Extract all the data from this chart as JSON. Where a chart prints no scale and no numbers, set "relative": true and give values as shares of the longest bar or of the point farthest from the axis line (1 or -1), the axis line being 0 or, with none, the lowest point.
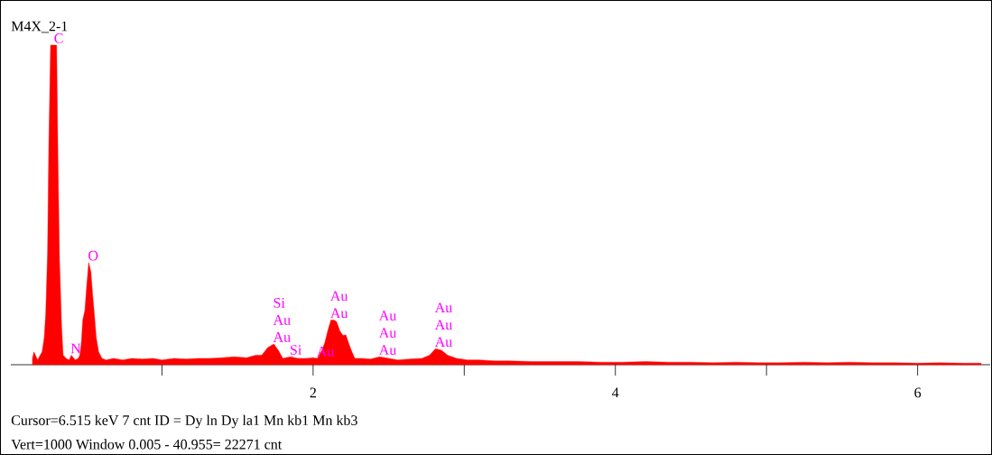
{
  "chart_data": {
    "type": "area",
    "relative": true,
    "title": "M4X_2-1",
    "xlim": [
      0,
      6.48
    ],
    "xticks": [
      {
        "value": 1,
        "label": null
      },
      {
        "value": 2,
        "label": "2"
      },
      {
        "value": 3,
        "label": null
      },
      {
        "value": 4,
        "label": "4"
      },
      {
        "value": 5,
        "label": null
      },
      {
        "value": 6,
        "label": "6"
      }
    ],
    "x": [
      0.143,
      0.153,
      0.177,
      0.207,
      0.221,
      0.231,
      0.243,
      0.251,
      0.263,
      0.277,
      0.29,
      0.303,
      0.312,
      0.322,
      0.336,
      0.346,
      0.366,
      0.386,
      0.4,
      0.426,
      0.446,
      0.456,
      0.466,
      0.476,
      0.49,
      0.501,
      0.515,
      0.53,
      0.541,
      0.555,
      0.565,
      0.581,
      0.603,
      0.63,
      0.68,
      0.74,
      0.8,
      0.87,
      0.94,
      1.0,
      1.08,
      1.16,
      1.24,
      1.32,
      1.4,
      1.48,
      1.56,
      1.62,
      1.66,
      1.7,
      1.74,
      1.77,
      1.8,
      1.85,
      1.9,
      1.96,
      2.0,
      2.028,
      2.058,
      2.078,
      2.097,
      2.118,
      2.137,
      2.155,
      2.177,
      2.197,
      2.217,
      2.237,
      2.257,
      2.276,
      2.32,
      2.38,
      2.44,
      2.5,
      2.56,
      2.64,
      2.72,
      2.77,
      2.81,
      2.85,
      2.89,
      2.95,
      3.02,
      3.1,
      3.2,
      3.3,
      3.45,
      3.6,
      3.75,
      3.9,
      4.05,
      4.2,
      4.35,
      4.5,
      4.65,
      4.8,
      4.95,
      5.1,
      5.25,
      5.4,
      5.55,
      5.7,
      5.85,
      6.0,
      6.15,
      6.3,
      6.42
    ],
    "values": [
      0.02,
      0.04,
      0.015,
      0.04,
      0.085,
      0.16,
      0.35,
      0.68,
      1,
      1,
      1,
      1,
      0.64,
      0.33,
      0.12,
      0.03,
      0.02,
      0.015,
      0.03,
      0.015,
      0.02,
      0.03,
      0.065,
      0.14,
      0.17,
      0.24,
      0.32,
      0.29,
      0.22,
      0.145,
      0.085,
      0.04,
      0.02,
      0.015,
      0.02,
      0.015,
      0.02,
      0.018,
      0.02,
      0.015,
      0.02,
      0.018,
      0.02,
      0.02,
      0.022,
      0.025,
      0.022,
      0.03,
      0.03,
      0.054,
      0.065,
      0.045,
      0.02,
      0.025,
      0.02,
      0.02,
      0.022,
      0.02,
      0.045,
      0.07,
      0.106,
      0.14,
      0.14,
      0.135,
      0.106,
      0.092,
      0.093,
      0.065,
      0.04,
      0.02,
      0.02,
      0.018,
      0.025,
      0.02,
      0.015,
      0.018,
      0.02,
      0.03,
      0.05,
      0.045,
      0.03,
      0.02,
      0.015,
      0.015,
      0.012,
      0.012,
      0.01,
      0.01,
      0.01,
      0.008,
      0.008,
      0.01,
      0.008,
      0.008,
      0.006,
      0.008,
      0.006,
      0.006,
      0.008,
      0.006,
      0.008,
      0.006,
      0.006,
      0.005,
      0.006,
      0.005,
      0.005
    ],
    "color": "#ff0000",
    "annotations": [
      {
        "text": "C",
        "x": 0.29,
        "y": 1
      },
      {
        "text": "O",
        "x": 0.515,
        "y": 0.32
      },
      {
        "text": "N",
        "x": 0.4,
        "y": 0.03
      },
      {
        "text": "Au",
        "x": 1.74,
        "y": 0.065
      },
      {
        "text": "Au",
        "x": 1.74,
        "y": 0.065
      },
      {
        "text": "Si",
        "x": 1.74,
        "y": 0.065
      },
      {
        "text": "Si",
        "x": 1.85,
        "y": 0.025
      },
      {
        "text": "Au",
        "x": 2.028,
        "y": 0.02
      },
      {
        "text": "Au",
        "x": 2.118,
        "y": 0.14
      },
      {
        "text": "Au",
        "x": 2.118,
        "y": 0.14
      },
      {
        "text": "Au",
        "x": 2.44,
        "y": 0.025
      },
      {
        "text": "Au",
        "x": 2.44,
        "y": 0.025
      },
      {
        "text": "Au",
        "x": 2.44,
        "y": 0.025
      },
      {
        "text": "Au",
        "x": 2.81,
        "y": 0.05
      },
      {
        "text": "Au",
        "x": 2.81,
        "y": 0.05
      },
      {
        "text": "Au",
        "x": 2.81,
        "y": 0.05
      },
      "Cursor=6.515 keV   7 cnt  ID = Dy ln  Dy la1  Mn kb1  Mn kb3",
      "Vert=1000            Window 0.005 - 40.955=   22271 cnt"
    ]
  }
}
